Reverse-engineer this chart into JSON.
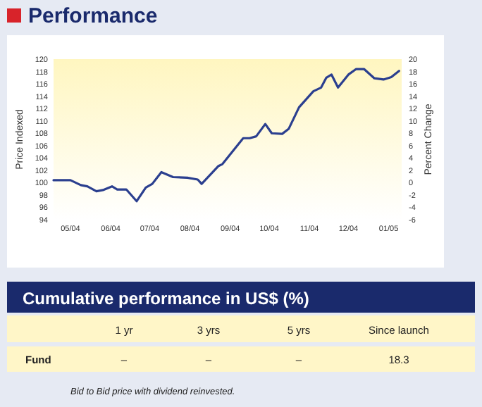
{
  "chart_data": [
    {
      "type": "line",
      "title": "Performance",
      "ylabel": "Price Indexed",
      "y2label": "Percent Change",
      "series": [
        {
          "color": "#2b3f8f",
          "x": [
            "2004-05-02",
            "2004-05-15",
            "2004-05-23",
            "2004-05-28",
            "2004-06-04",
            "2004-06-09",
            "2004-06-16",
            "2004-06-20",
            "2004-06-27",
            "2004-07-05",
            "2004-07-12",
            "2004-07-17",
            "2004-07-24",
            "2004-08-02",
            "2004-08-13",
            "2004-08-21",
            "2004-08-24",
            "2004-09-06",
            "2004-09-09",
            "2004-09-25",
            "2004-09-30",
            "2004-10-05",
            "2004-10-12",
            "2004-10-17",
            "2004-10-25",
            "2004-10-30",
            "2004-11-07",
            "2004-11-18",
            "2004-11-24",
            "2004-11-28",
            "2004-12-02",
            "2004-12-07",
            "2004-12-15",
            "2004-12-21",
            "2004-12-27",
            "2005-01-04",
            "2005-01-11",
            "2005-01-17",
            "2005-01-23"
          ],
          "values": [
            100.4,
            100.4,
            99.6,
            99.4,
            98.6,
            98.8,
            99.4,
            98.9,
            98.9,
            97.0,
            99.2,
            99.8,
            101.7,
            100.9,
            100.8,
            100.5,
            99.8,
            102.7,
            103.0,
            107.2,
            107.2,
            107.5,
            109.5,
            108.0,
            107.9,
            108.7,
            112.2,
            114.8,
            115.4,
            117.0,
            117.5,
            115.4,
            117.5,
            118.4,
            118.4,
            116.9,
            116.7,
            117.1,
            118.1
          ]
        }
      ],
      "xlim": [
        "2004-05-02",
        "2005-01-25"
      ],
      "xticks": [
        {
          "value": "2004-05-15",
          "label": "05/04"
        },
        {
          "value": "2004-06-15",
          "label": "06/04"
        },
        {
          "value": "2004-07-15",
          "label": "07/04"
        },
        {
          "value": "2004-08-15",
          "label": "08/04"
        },
        {
          "value": "2004-09-15",
          "label": "09/04"
        },
        {
          "value": "2004-10-15",
          "label": "10/04"
        },
        {
          "value": "2004-11-15",
          "label": "11/04"
        },
        {
          "value": "2004-12-15",
          "label": "12/04"
        },
        {
          "value": "2005-01-15",
          "label": "01/05"
        }
      ],
      "ylim": [
        94,
        120
      ],
      "yticks": [
        94,
        96,
        98,
        100,
        102,
        104,
        106,
        108,
        110,
        112,
        114,
        116,
        118,
        120
      ],
      "y2lim": [
        -6,
        20
      ],
      "y2ticks": [
        -6,
        -4,
        -2,
        0,
        2,
        4,
        6,
        8,
        10,
        12,
        14,
        16,
        18,
        20
      ],
      "grid": false,
      "marker": "none",
      "line_style": "solid"
    },
    {
      "type": "other",
      "title": "Cumulative performance in US$ (%)",
      "categories": [
        "1 yr",
        "3 yrs",
        "5 yrs",
        "Since launch"
      ],
      "series": [
        {
          "name": "Fund",
          "values": [
            null,
            null,
            null,
            18.3
          ],
          "value_labels": [
            "–",
            "–",
            "–",
            "18.3"
          ]
        }
      ],
      "annotations": [
        "Bid to Bid price with dividend reinvested."
      ]
    }
  ]
}
